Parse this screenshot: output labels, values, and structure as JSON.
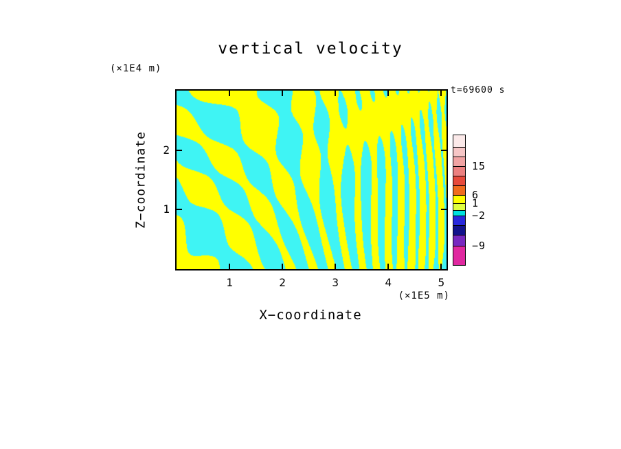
{
  "chart_data": {
    "type": "heatmap",
    "title": "vertical velocity",
    "time_annotation": "t=69600 s",
    "xlabel": "X−coordinate",
    "x_unit": "(×1E5 m)",
    "x_ticks": [
      1,
      2,
      3,
      4,
      5
    ],
    "xlim": [
      0,
      5.1
    ],
    "ylabel": "Z−coordinate",
    "y_unit": "(×1E4 m)",
    "y_ticks": [
      1,
      2
    ],
    "ylim": [
      0,
      3
    ],
    "grid": false,
    "legend_position": "right-colorbar",
    "description": "Filled contour cross-section of vertical velocity at t=69600 s. The visible field is binary-looking: yellow patches are weakly positive vertical velocity (about 1 to 6) and cyan patches weakly negative (about -2 to 1). Tilted wave bands occupy the upper-left half, fine near-vertical striations the lower-right, and a broad positive (yellow) patch sits in the upper-right.",
    "colorbar": {
      "label_values": [
        15,
        6,
        1,
        -2,
        -9
      ],
      "segments": [
        {
          "color": "#FBE9E9",
          "h": 18
        },
        {
          "color": "#F6C6C6",
          "h": 14
        },
        {
          "color": "#F1A3A3",
          "h": 14,
          "label": "15"
        },
        {
          "color": "#EC8080",
          "h": 14
        },
        {
          "color": "#E74A3C",
          "h": 14
        },
        {
          "color": "#F06C1E",
          "h": 14,
          "label": "6"
        },
        {
          "color": "#FFFF00",
          "h": 12,
          "label": "1"
        },
        {
          "color": "#E0FF40",
          "h": 10
        },
        {
          "color": "#00E0E0",
          "h": 8,
          "label": "−2"
        },
        {
          "color": "#2828DC",
          "h": 14
        },
        {
          "color": "#12128C",
          "h": 14
        },
        {
          "color": "#7828C0",
          "h": 16,
          "label": "−9"
        },
        {
          "color": "#E028A0",
          "h": 27
        }
      ]
    },
    "field": {
      "positive_color": "#FFFF00",
      "negative_color": "#3FF4F4",
      "pattern": {
        "kx1": 4,
        "kx3": 10,
        "kz": 2.6,
        "kz_taper": 0.8,
        "warp_amp": 1.6,
        "warp_u": 1.1,
        "warp_w": 0.8,
        "warp_phase": 1.2,
        "noise_amp": 0.65,
        "noise_u": 2.3,
        "noise_w": 1.7,
        "noise_warp": 2.5,
        "noise_uv": 0.9,
        "blob_amp": 1.6,
        "blob_u": 0.76,
        "blob_w": 0.12,
        "blob_su": 0.03,
        "blob_sw": 0.04
      }
    }
  }
}
